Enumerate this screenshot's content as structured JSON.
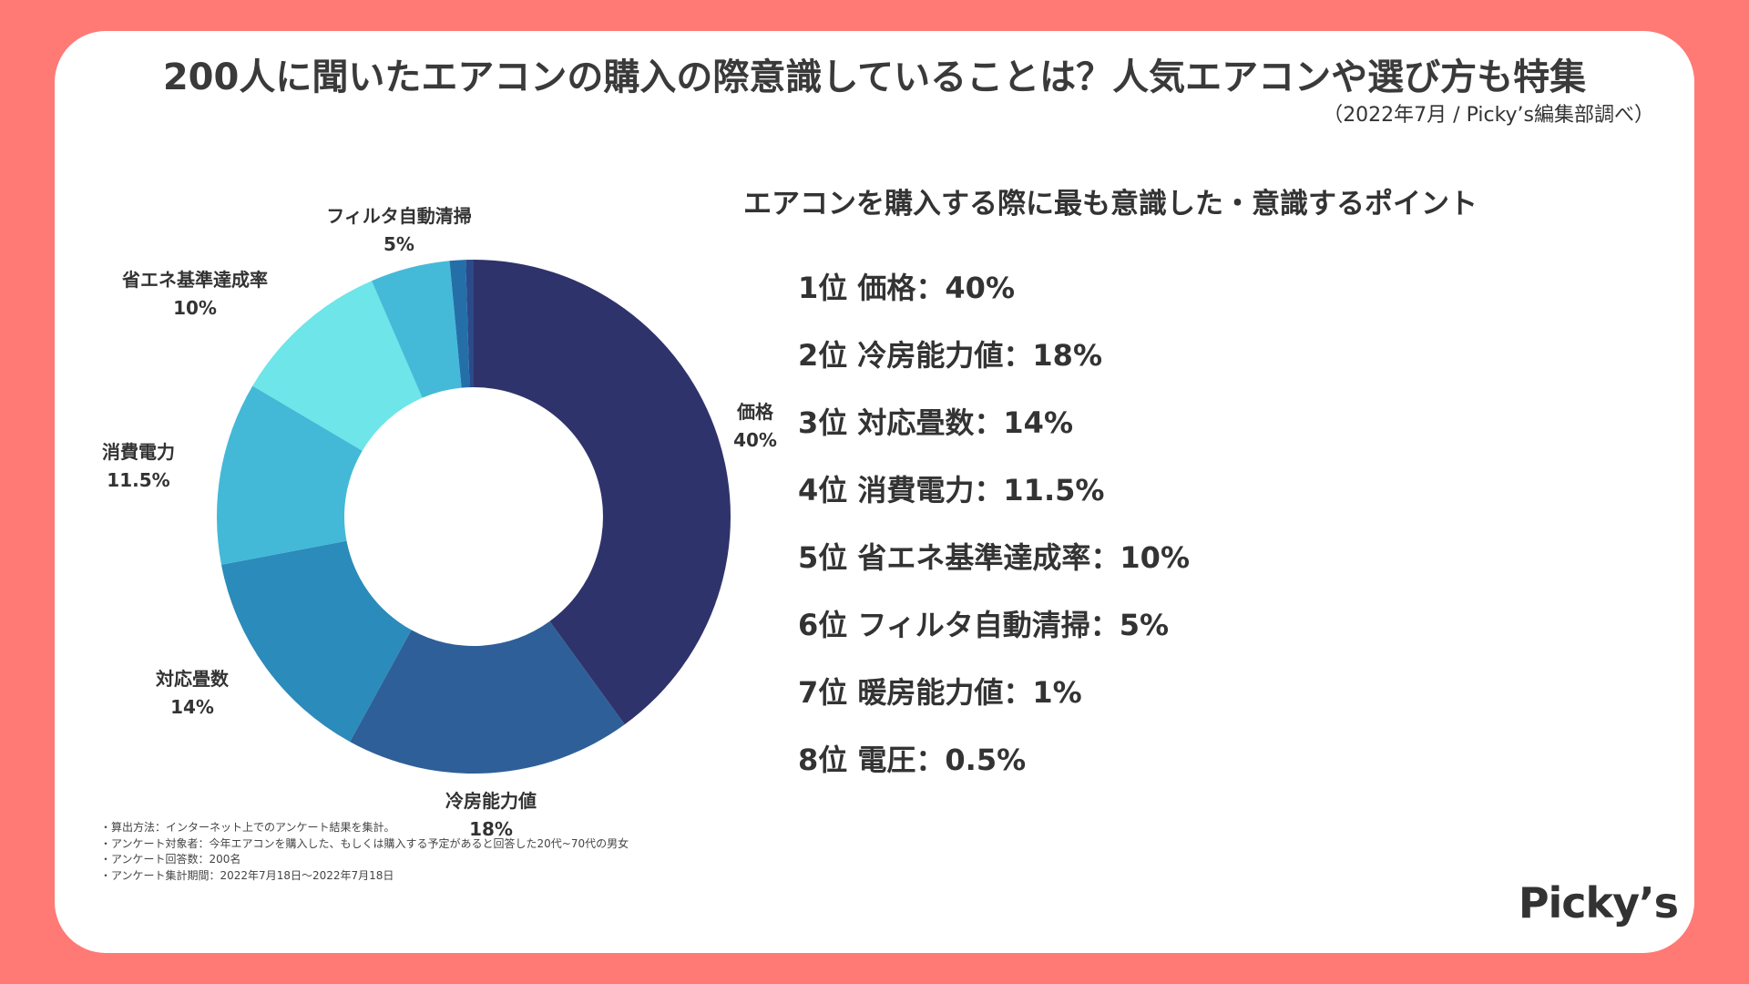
{
  "title": "200人に聞いたエアコンの購入の際意識していることは？人気エアコンや選び方も特集",
  "source": "（2022年7月 / Picky’s編集部調べ）",
  "chart_data": {
    "type": "pie",
    "variant": "donut",
    "title": "エアコンを購入する際に最も意識した・意識するポイント",
    "unit": "%",
    "categories": [
      "価格",
      "冷房能力値",
      "対応畳数",
      "消費電力",
      "省エネ基準達成率",
      "フィルタ自動清掃",
      "暖房能力値",
      "電圧"
    ],
    "values": [
      40,
      18,
      14,
      11.5,
      10,
      5,
      1,
      0.5
    ],
    "value_labels": [
      "40%",
      "18%",
      "14%",
      "11.5%",
      "10%",
      "5%",
      "1%",
      "0.5%"
    ],
    "colors": [
      "#2F336B",
      "#2E5F98",
      "#2B8BBA",
      "#43B9D7",
      "#6DE5E9",
      "#45BAD8",
      "#256FA9",
      "#2B4A8A"
    ],
    "labeled_slices": [
      0,
      1,
      2,
      3,
      4,
      5
    ]
  },
  "ranking": {
    "heading": "エアコンを購入する際に最も意識した・意識するポイント",
    "items": [
      "1位 価格：40%",
      "2位 冷房能力値：18%",
      "3位 対応畳数：14%",
      "4位 消費電力：11.5%",
      "5位 省エネ基準達成率：10%",
      "6位 フィルタ自動清掃：5%",
      "7位 暖房能力値：1%",
      "8位 電圧：0.5%"
    ]
  },
  "notes": [
    "・算出方法：インターネット上でのアンケート結果を集計。",
    "・アンケート対象者：今年エアコンを購入した、もしくは購入する予定があると回答した20代~70代の男女",
    "・アンケート回答数：200名",
    "・アンケート集計期間：2022年7月18日〜2022年7月18日"
  ],
  "logo": "Picky’s"
}
